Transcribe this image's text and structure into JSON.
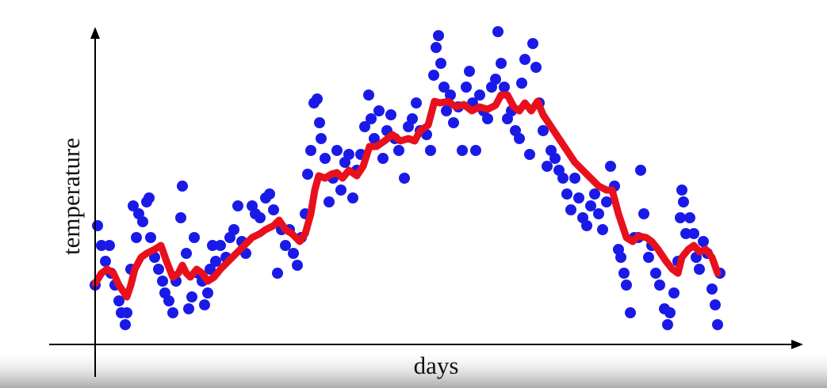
{
  "chart_data": {
    "type": "scatter",
    "xlabel": "days",
    "ylabel": "temperature",
    "xlim": [
      -58,
      890
    ],
    "ylim": [
      -40,
      400
    ],
    "series": [
      {
        "color": "#1a1ae8",
        "x": [
          0,
          3,
          8,
          13,
          18,
          20,
          25,
          30,
          33,
          38,
          40,
          45,
          48,
          52,
          55,
          60,
          65,
          68,
          70,
          75,
          80,
          85,
          88,
          93,
          98,
          102,
          108,
          110,
          115,
          118,
          122,
          125,
          130,
          135,
          138,
          142,
          145,
          148,
          152,
          158,
          165,
          170,
          175,
          180,
          185,
          190,
          198,
          202,
          208,
          215,
          220,
          225,
          230,
          235,
          240,
          245,
          250,
          255,
          260,
          265,
          268,
          272,
          276,
          280,
          283,
          285,
          290,
          295,
          300,
          305,
          310,
          315,
          320,
          325,
          330,
          335,
          340,
          345,
          348,
          352,
          358,
          363,
          368,
          373,
          378,
          383,
          390,
          395,
          400,
          405,
          410,
          418,
          423,
          427,
          430,
          433,
          436,
          440,
          443,
          448,
          452,
          458,
          463,
          468,
          472,
          476,
          480,
          485,
          490,
          495,
          500,
          505,
          508,
          512,
          516,
          520,
          525,
          530,
          535,
          538,
          542,
          548,
          552,
          556,
          560,
          565,
          570,
          575,
          580,
          585,
          590,
          595,
          600,
          605,
          610,
          615,
          620,
          625,
          630,
          635,
          640,
          645,
          650,
          655,
          660,
          663,
          667,
          670,
          675,
          680,
          685,
          688,
          692,
          698,
          702,
          707,
          712,
          718,
          722,
          725,
          730,
          735,
          738,
          740,
          742,
          745,
          750,
          755,
          758,
          762,
          767,
          772,
          778,
          782,
          785,
          788
        ],
        "values": [
          75,
          150,
          125,
          105,
          125,
          90,
          75,
          55,
          40,
          25,
          40,
          95,
          175,
          135,
          165,
          155,
          180,
          185,
          135,
          110,
          95,
          80,
          65,
          55,
          40,
          80,
          160,
          200,
          115,
          45,
          60,
          135,
          90,
          80,
          50,
          65,
          95,
          125,
          105,
          125,
          110,
          135,
          145,
          175,
          130,
          115,
          175,
          165,
          160,
          185,
          190,
          170,
          90,
          145,
          125,
          145,
          115,
          100,
          135,
          165,
          215,
          245,
          305,
          310,
          280,
          260,
          235,
          180,
          210,
          245,
          195,
          230,
          240,
          185,
          220,
          240,
          275,
          315,
          285,
          260,
          295,
          235,
          270,
          290,
          260,
          245,
          210,
          275,
          285,
          305,
          270,
          265,
          245,
          340,
          375,
          390,
          355,
          325,
          295,
          315,
          280,
          300,
          245,
          325,
          345,
          305,
          245,
          315,
          295,
          285,
          325,
          335,
          395,
          355,
          325,
          285,
          295,
          270,
          260,
          330,
          360,
          240,
          380,
          350,
          305,
          270,
          225,
          245,
          235,
          220,
          210,
          190,
          170,
          210,
          185,
          160,
          150,
          175,
          190,
          165,
          145,
          180,
          225,
          200,
          120,
          110,
          90,
          75,
          40,
          135,
          135,
          220,
          165,
          110,
          125,
          90,
          75,
          45,
          25,
          40,
          65,
          105,
          160,
          195,
          180,
          140,
          160,
          140,
          110,
          95,
          130,
          115,
          70,
          50,
          25,
          90
        ]
      },
      {
        "type": "line",
        "color": "#e8101c",
        "x": [
          0,
          8,
          15,
          23,
          30,
          40,
          45,
          50,
          58,
          65,
          75,
          83,
          90,
          98,
          105,
          110,
          115,
          120,
          128,
          135,
          142,
          150,
          158,
          168,
          178,
          188,
          198,
          208,
          215,
          225,
          232,
          240,
          248,
          258,
          265,
          272,
          277,
          282,
          290,
          298,
          305,
          312,
          320,
          330,
          338,
          346,
          355,
          365,
          375,
          385,
          395,
          403,
          410,
          420,
          428,
          435,
          445,
          455,
          465,
          475,
          485,
          495,
          505,
          512,
          520,
          528,
          535,
          542,
          550,
          558,
          565,
          575,
          585,
          595,
          605,
          615,
          625,
          635,
          645,
          652,
          660,
          670,
          678,
          685,
          695,
          702,
          710,
          720,
          728,
          735,
          740,
          748,
          755,
          762,
          770,
          778,
          785
        ],
        "values": [
          77,
          90,
          95,
          90,
          75,
          60,
          75,
          95,
          110,
          115,
          120,
          125,
          105,
          85,
          90,
          100,
          90,
          85,
          95,
          90,
          80,
          85,
          95,
          105,
          115,
          125,
          135,
          140,
          145,
          150,
          157,
          145,
          140,
          130,
          140,
          165,
          195,
          213,
          210,
          215,
          217,
          210,
          220,
          213,
          225,
          250,
          250,
          257,
          265,
          257,
          260,
          257,
          270,
          277,
          307,
          305,
          307,
          300,
          303,
          295,
          300,
          297,
          302,
          315,
          315,
          300,
          295,
          305,
          295,
          307,
          290,
          275,
          260,
          245,
          230,
          220,
          210,
          200,
          195,
          195,
          165,
          135,
          130,
          137,
          135,
          130,
          120,
          105,
          95,
          90,
          110,
          120,
          125,
          117,
          120,
          110,
          90
        ]
      }
    ]
  }
}
